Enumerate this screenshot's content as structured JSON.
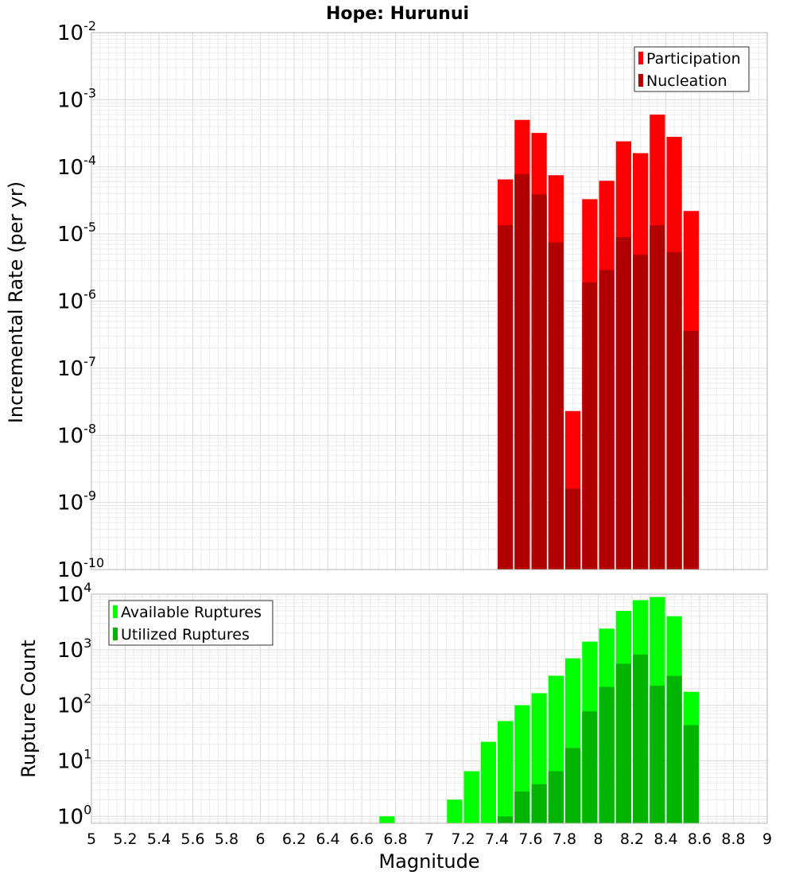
{
  "chart_data": [
    {
      "type": "bar",
      "title": "Hope: Hurunui",
      "xlabel": "",
      "ylabel": "Incremental Rate (per yr)",
      "yscale": "log",
      "ylim": [
        1e-10,
        0.01
      ],
      "xlim": [
        5,
        9
      ],
      "grid": true,
      "legend_position": "top-right",
      "x": [
        7.45,
        7.55,
        7.65,
        7.75,
        7.85,
        7.95,
        8.05,
        8.15,
        8.25,
        8.35,
        8.45,
        8.55
      ],
      "series": [
        {
          "name": "Participation",
          "color": "#ff0000",
          "values": [
            6.5e-05,
            0.0005,
            0.00032,
            7.5e-05,
            2.3e-08,
            3.3e-05,
            6.2e-05,
            0.00024,
            0.00016,
            0.0006,
            0.00028,
            2.2e-05
          ]
        },
        {
          "name": "Nucleation",
          "color": "#b00000",
          "values": [
            1.35e-05,
            7.8e-05,
            3.9e-05,
            7.5e-06,
            1.6e-09,
            1.9e-06,
            2.9e-06,
            9e-06,
            4.9e-06,
            1.35e-05,
            5.4e-06,
            3.6e-07
          ]
        }
      ]
    },
    {
      "type": "bar",
      "title": "",
      "xlabel": "Magnitude",
      "ylabel": "Rupture Count",
      "yscale": "log",
      "ylim": [
        0.75,
        10000
      ],
      "xlim": [
        5,
        9
      ],
      "grid": true,
      "legend_position": "top-left",
      "x": [
        6.75,
        7.15,
        7.25,
        7.35,
        7.45,
        7.55,
        7.65,
        7.75,
        7.85,
        7.95,
        8.05,
        8.15,
        8.25,
        8.35,
        8.45,
        8.55
      ],
      "series": [
        {
          "name": "Available Ruptures",
          "color": "#00ff00",
          "values": [
            1,
            2,
            6.5,
            22,
            52,
            100,
            165,
            340,
            700,
            1400,
            2400,
            5000,
            7800,
            8900,
            4000,
            175
          ]
        },
        {
          "name": "Utilized Ruptures",
          "color": "#00b400",
          "values": [
            0,
            0,
            0,
            0,
            1,
            2.8,
            3.8,
            6.5,
            17,
            78,
            215,
            560,
            820,
            225,
            340,
            44
          ]
        }
      ]
    }
  ],
  "x_ticks": [
    "5",
    "5.2",
    "5.4",
    "5.6",
    "5.8",
    "6",
    "6.2",
    "6.4",
    "6.6",
    "6.8",
    "7",
    "7.2",
    "7.4",
    "7.6",
    "7.8",
    "8",
    "8.2",
    "8.4",
    "8.6",
    "8.8",
    "9"
  ],
  "top_y_ticks": [
    {
      "base": "10",
      "exp": "-10"
    },
    {
      "base": "10",
      "exp": "-9"
    },
    {
      "base": "10",
      "exp": "-8"
    },
    {
      "base": "10",
      "exp": "-7"
    },
    {
      "base": "10",
      "exp": "-6"
    },
    {
      "base": "10",
      "exp": "-5"
    },
    {
      "base": "10",
      "exp": "-4"
    },
    {
      "base": "10",
      "exp": "-3"
    },
    {
      "base": "10",
      "exp": "-2"
    }
  ],
  "bottom_y_ticks": [
    {
      "base": "10",
      "exp": "0"
    },
    {
      "base": "10",
      "exp": "1"
    },
    {
      "base": "10",
      "exp": "2"
    },
    {
      "base": "10",
      "exp": "3"
    },
    {
      "base": "10",
      "exp": "4"
    }
  ]
}
